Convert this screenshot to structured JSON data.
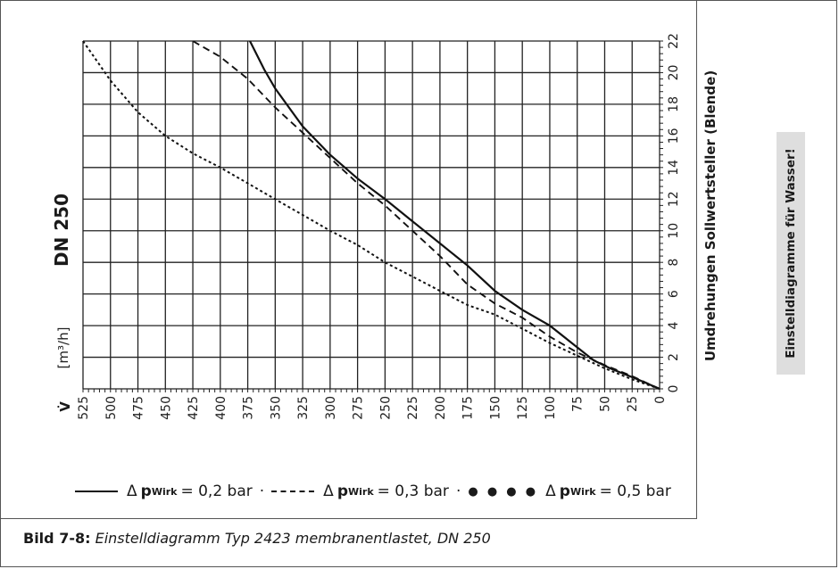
{
  "chart_data": {
    "type": "line",
    "nominal_size": "DN 250",
    "x_label": "V̇",
    "x_unit": "[m³/h]",
    "y_label": "Umdrehungen Sollwertsteller (Blende)",
    "x_direction": "decreasing",
    "xlim": [
      0,
      525
    ],
    "ylim": [
      0,
      22
    ],
    "x_ticks": [
      525,
      500,
      475,
      450,
      425,
      400,
      375,
      350,
      325,
      300,
      275,
      250,
      225,
      200,
      175,
      150,
      125,
      100,
      75,
      50,
      25,
      0
    ],
    "y_ticks": [
      0,
      2,
      4,
      6,
      8,
      10,
      12,
      14,
      16,
      18,
      20,
      22
    ],
    "grid": true,
    "series": [
      {
        "name": "Δp Wirk = 0,2 bar",
        "style": "solid",
        "points": [
          [
            0,
            0
          ],
          [
            20,
            0.6
          ],
          [
            45,
            1.3
          ],
          [
            60,
            1.8
          ],
          [
            80,
            2.9
          ],
          [
            100,
            4
          ],
          [
            125,
            5
          ],
          [
            150,
            6.2
          ],
          [
            175,
            7.8
          ],
          [
            200,
            9.2
          ],
          [
            225,
            10.6
          ],
          [
            250,
            12
          ],
          [
            275,
            13.3
          ],
          [
            300,
            14.8
          ],
          [
            325,
            16.6
          ],
          [
            350,
            19
          ],
          [
            360,
            20.2
          ],
          [
            373,
            22
          ]
        ]
      },
      {
        "name": "Δp Wirk = 0,3 bar",
        "style": "dashed",
        "points": [
          [
            0,
            0
          ],
          [
            25,
            0.8
          ],
          [
            50,
            1.5
          ],
          [
            75,
            2.3
          ],
          [
            100,
            3.3
          ],
          [
            125,
            4.5
          ],
          [
            150,
            5.4
          ],
          [
            175,
            6.6
          ],
          [
            200,
            8.4
          ],
          [
            225,
            10
          ],
          [
            250,
            11.6
          ],
          [
            275,
            13
          ],
          [
            300,
            14.6
          ],
          [
            325,
            16.2
          ],
          [
            350,
            17.8
          ],
          [
            375,
            19.6
          ],
          [
            400,
            21
          ],
          [
            425,
            22
          ]
        ]
      },
      {
        "name": "Δp Wirk = 0,5 bar",
        "style": "dotted",
        "points": [
          [
            0,
            0
          ],
          [
            25,
            0.6
          ],
          [
            50,
            1.3
          ],
          [
            75,
            2.1
          ],
          [
            100,
            2.9
          ],
          [
            125,
            3.8
          ],
          [
            150,
            4.7
          ],
          [
            175,
            5.3
          ],
          [
            200,
            6.2
          ],
          [
            225,
            7.1
          ],
          [
            250,
            8
          ],
          [
            275,
            9.1
          ],
          [
            300,
            10
          ],
          [
            325,
            11
          ],
          [
            350,
            12
          ],
          [
            375,
            13
          ],
          [
            400,
            14
          ],
          [
            425,
            14.9
          ],
          [
            450,
            16
          ],
          [
            475,
            17.5
          ],
          [
            500,
            19.5
          ],
          [
            525,
            22
          ]
        ]
      }
    ]
  },
  "legend": {
    "items": [
      {
        "prefix": "Δ",
        "symbol": "p",
        "subscript": "Wirk",
        "value": " = 0,2 bar"
      },
      {
        "prefix": "Δ",
        "symbol": "p",
        "subscript": "Wirk",
        "value": " = 0,3 bar"
      },
      {
        "prefix": "Δ",
        "symbol": "p",
        "subscript": "Wirk",
        "value": " = 0,5 bar"
      }
    ],
    "separator": "·",
    "dots": "● ● ● ●"
  },
  "caption": {
    "label": "Bild 7-8:",
    "text": "Einstelldiagramm Typ 2423 membranentlastet, DN 250"
  },
  "side_note": "Einstelldiagramme für Wasser!"
}
